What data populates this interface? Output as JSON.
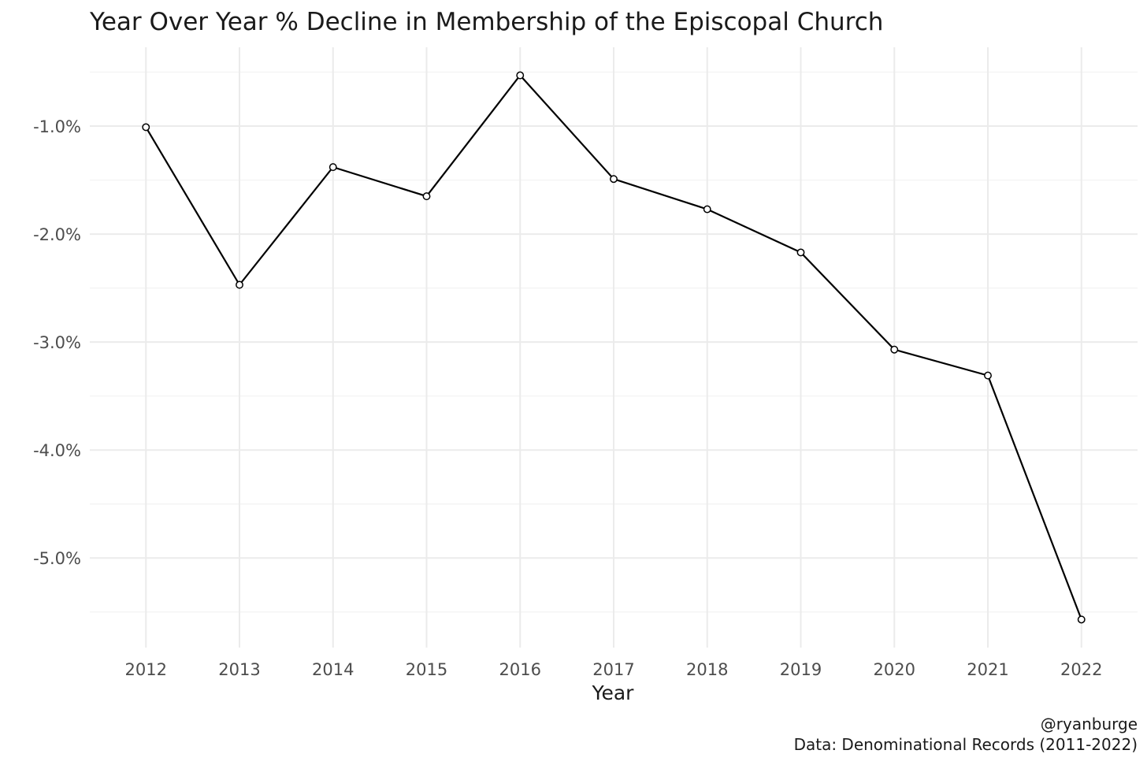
{
  "chart_data": {
    "type": "line",
    "title": "Year Over Year % Decline in Membership of the Episcopal Church",
    "xlabel": "Year",
    "ylabel": "",
    "x": [
      2012,
      2013,
      2014,
      2015,
      2016,
      2017,
      2018,
      2019,
      2020,
      2021,
      2022
    ],
    "values": [
      -1.01,
      -2.47,
      -1.38,
      -1.65,
      -0.53,
      -1.49,
      -1.77,
      -2.17,
      -3.07,
      -3.31,
      -5.57
    ],
    "x_tick_labels": [
      "2012",
      "2013",
      "2014",
      "2015",
      "2016",
      "2017",
      "2018",
      "2019",
      "2020",
      "2021",
      "2022"
    ],
    "y_ticks": [
      -1.0,
      -2.0,
      -3.0,
      -4.0,
      -5.0
    ],
    "y_tick_labels": [
      "-1.0%",
      "-2.0%",
      "-3.0%",
      "-4.0%",
      "-5.0%"
    ],
    "ylim": [
      -5.83,
      -0.27
    ],
    "xlim": [
      2011.4,
      2022.6
    ],
    "grid": true,
    "caption": [
      "@ryanburge",
      "Data: Denominational Records (2011-2022)"
    ],
    "colors": {
      "line": "#000000",
      "point_fill": "#ffffff",
      "grid": "#ebebeb"
    }
  }
}
